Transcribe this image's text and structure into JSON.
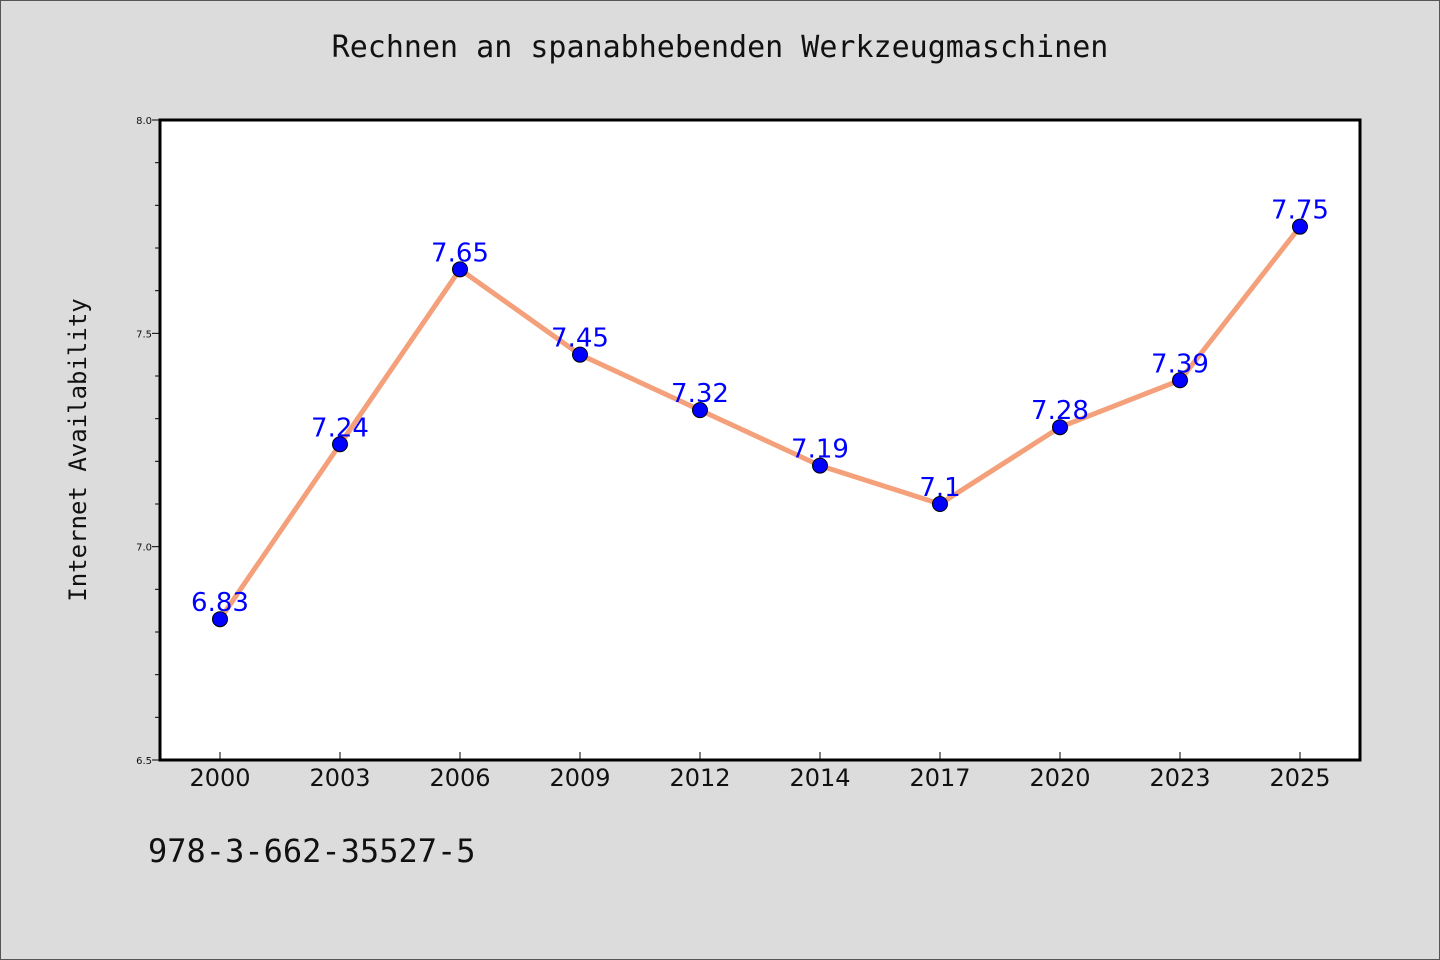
{
  "chart_data": {
    "type": "line",
    "title": "Rechnen an spanabhebenden Werkzeugmaschinen",
    "xlabel": "",
    "ylabel": "Internet Availability",
    "categories": [
      "2000",
      "2003",
      "2006",
      "2009",
      "2012",
      "2014",
      "2017",
      "2020",
      "2023",
      "2025"
    ],
    "series": [
      {
        "values": [
          6.83,
          7.24,
          7.65,
          7.45,
          7.32,
          7.19,
          7.1,
          7.28,
          7.39,
          7.75
        ],
        "labels": [
          "6.83",
          "7.24",
          "7.65",
          "7.45",
          "7.32",
          "7.19",
          "7.1",
          "7.28",
          "7.39",
          "7.75"
        ],
        "line_color": "#f4a07a",
        "marker_color": "#0000ff",
        "label_color": "#0000ff"
      }
    ],
    "ylim": [
      6.5,
      8.0
    ],
    "yticks": [
      "6.5",
      "7.0",
      "7.5",
      "8.0"
    ],
    "grid": false,
    "legend": "none"
  },
  "footer": {
    "code": "978-3-662-35527-5"
  },
  "colors": {
    "page_background": "#dcdcdc",
    "plot_background": "#ffffff"
  }
}
